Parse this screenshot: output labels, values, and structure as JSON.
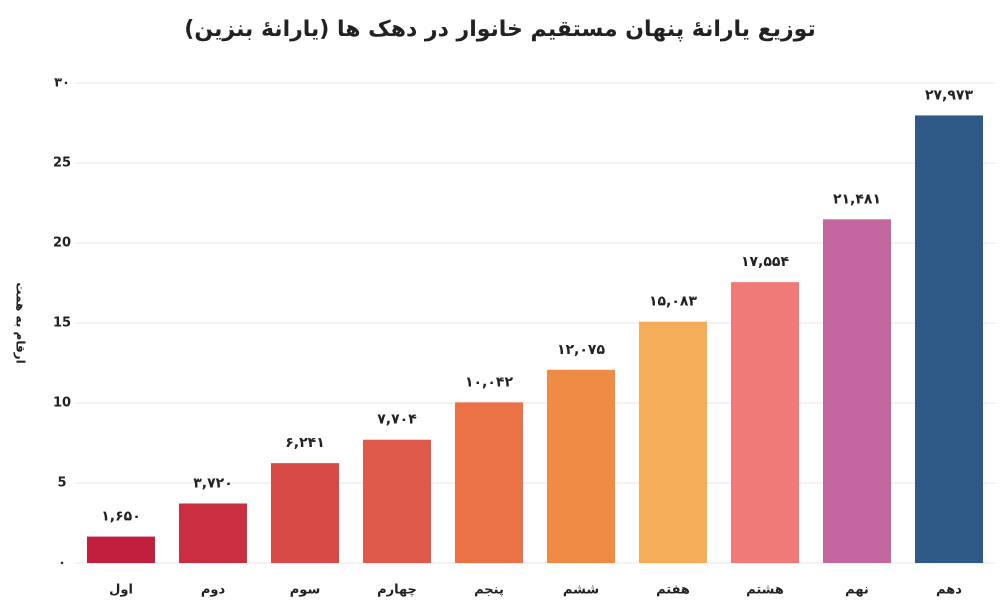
{
  "chart_data": {
    "type": "bar",
    "title": "توزیع یارانهٔ پنهان مستقیم خانوار در دهک ها (یارانهٔ بنزین)",
    "y_label": "ارقام به همت",
    "categories": [
      "اول",
      "دوم",
      "سوم",
      "چهارم",
      "پنجم",
      "ششم",
      "هفتم",
      "هشتم",
      "نهم",
      "دهم"
    ],
    "values": [
      1.65,
      3.72,
      6.241,
      7.704,
      10.042,
      12.075,
      15.083,
      17.554,
      21.481,
      27.973
    ],
    "value_labels": [
      "۱,۶۵۰",
      "۳,۷۲۰",
      "۶,۲۴۱",
      "۷,۷۰۴",
      "۱۰,۰۴۲",
      "۱۲,۰۷۵",
      "۱۵,۰۸۳",
      "۱۷,۵۵۴",
      "۲۱,۴۸۱",
      "۲۷,۹۷۳"
    ],
    "colors": [
      "#c21f3f",
      "#c92f40",
      "#d84a45",
      "#e05a4b",
      "#eb7146",
      "#ef8b45",
      "#f5ad5a",
      "#f07a78",
      "#c4679e",
      "#2f5a87"
    ],
    "ylim": [
      0,
      30
    ],
    "yticks": [
      {
        "value": 0,
        "label": "۰"
      },
      5,
      10,
      15,
      20,
      25,
      {
        "value": 30,
        "label": "۳۰"
      }
    ],
    "grid": true
  }
}
